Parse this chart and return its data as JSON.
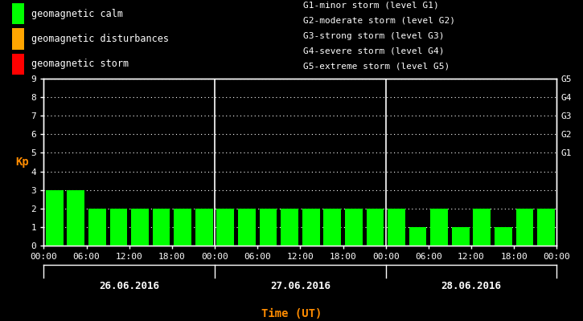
{
  "background_color": "#000000",
  "plot_bg_color": "#000000",
  "bar_color_calm": "#00ff00",
  "bar_color_disturbance": "#ffa500",
  "bar_color_storm": "#ff0000",
  "grid_color": "#ffffff",
  "text_color": "#ffffff",
  "axis_label_color": "#ff8c00",
  "days": [
    "26.06.2016",
    "27.06.2016",
    "28.06.2016"
  ],
  "kp_values": [
    [
      3,
      3,
      2,
      2,
      2,
      2,
      2,
      2
    ],
    [
      2,
      2,
      2,
      2,
      2,
      2,
      2,
      2
    ],
    [
      2,
      1,
      2,
      1,
      2,
      1,
      2,
      2
    ]
  ],
  "ylim": [
    0,
    9
  ],
  "yticks": [
    0,
    1,
    2,
    3,
    4,
    5,
    6,
    7,
    8,
    9
  ],
  "right_labels": [
    "G5",
    "G4",
    "G3",
    "G2",
    "G1"
  ],
  "right_label_yvals": [
    9,
    8,
    7,
    6,
    5
  ],
  "legend_items": [
    {
      "label": "geomagnetic calm",
      "color": "#00ff00"
    },
    {
      "label": "geomagnetic disturbances",
      "color": "#ffa500"
    },
    {
      "label": "geomagnetic storm",
      "color": "#ff0000"
    }
  ],
  "storm_labels": [
    "G1-minor storm (level G1)",
    "G2-moderate storm (level G2)",
    "G3-strong storm (level G3)",
    "G4-severe storm (level G4)",
    "G5-extreme storm (level G5)"
  ],
  "xlabel": "Time (UT)",
  "ylabel": "Kp",
  "tick_labels": [
    "00:00",
    "06:00",
    "12:00",
    "18:00",
    "00:00",
    "06:00",
    "12:00",
    "18:00",
    "00:00",
    "06:00",
    "12:00",
    "18:00",
    "00:00"
  ],
  "bar_width": 0.82,
  "font_size": 8,
  "monospace_font": "monospace",
  "n_days": 3,
  "bars_per_day": 8
}
